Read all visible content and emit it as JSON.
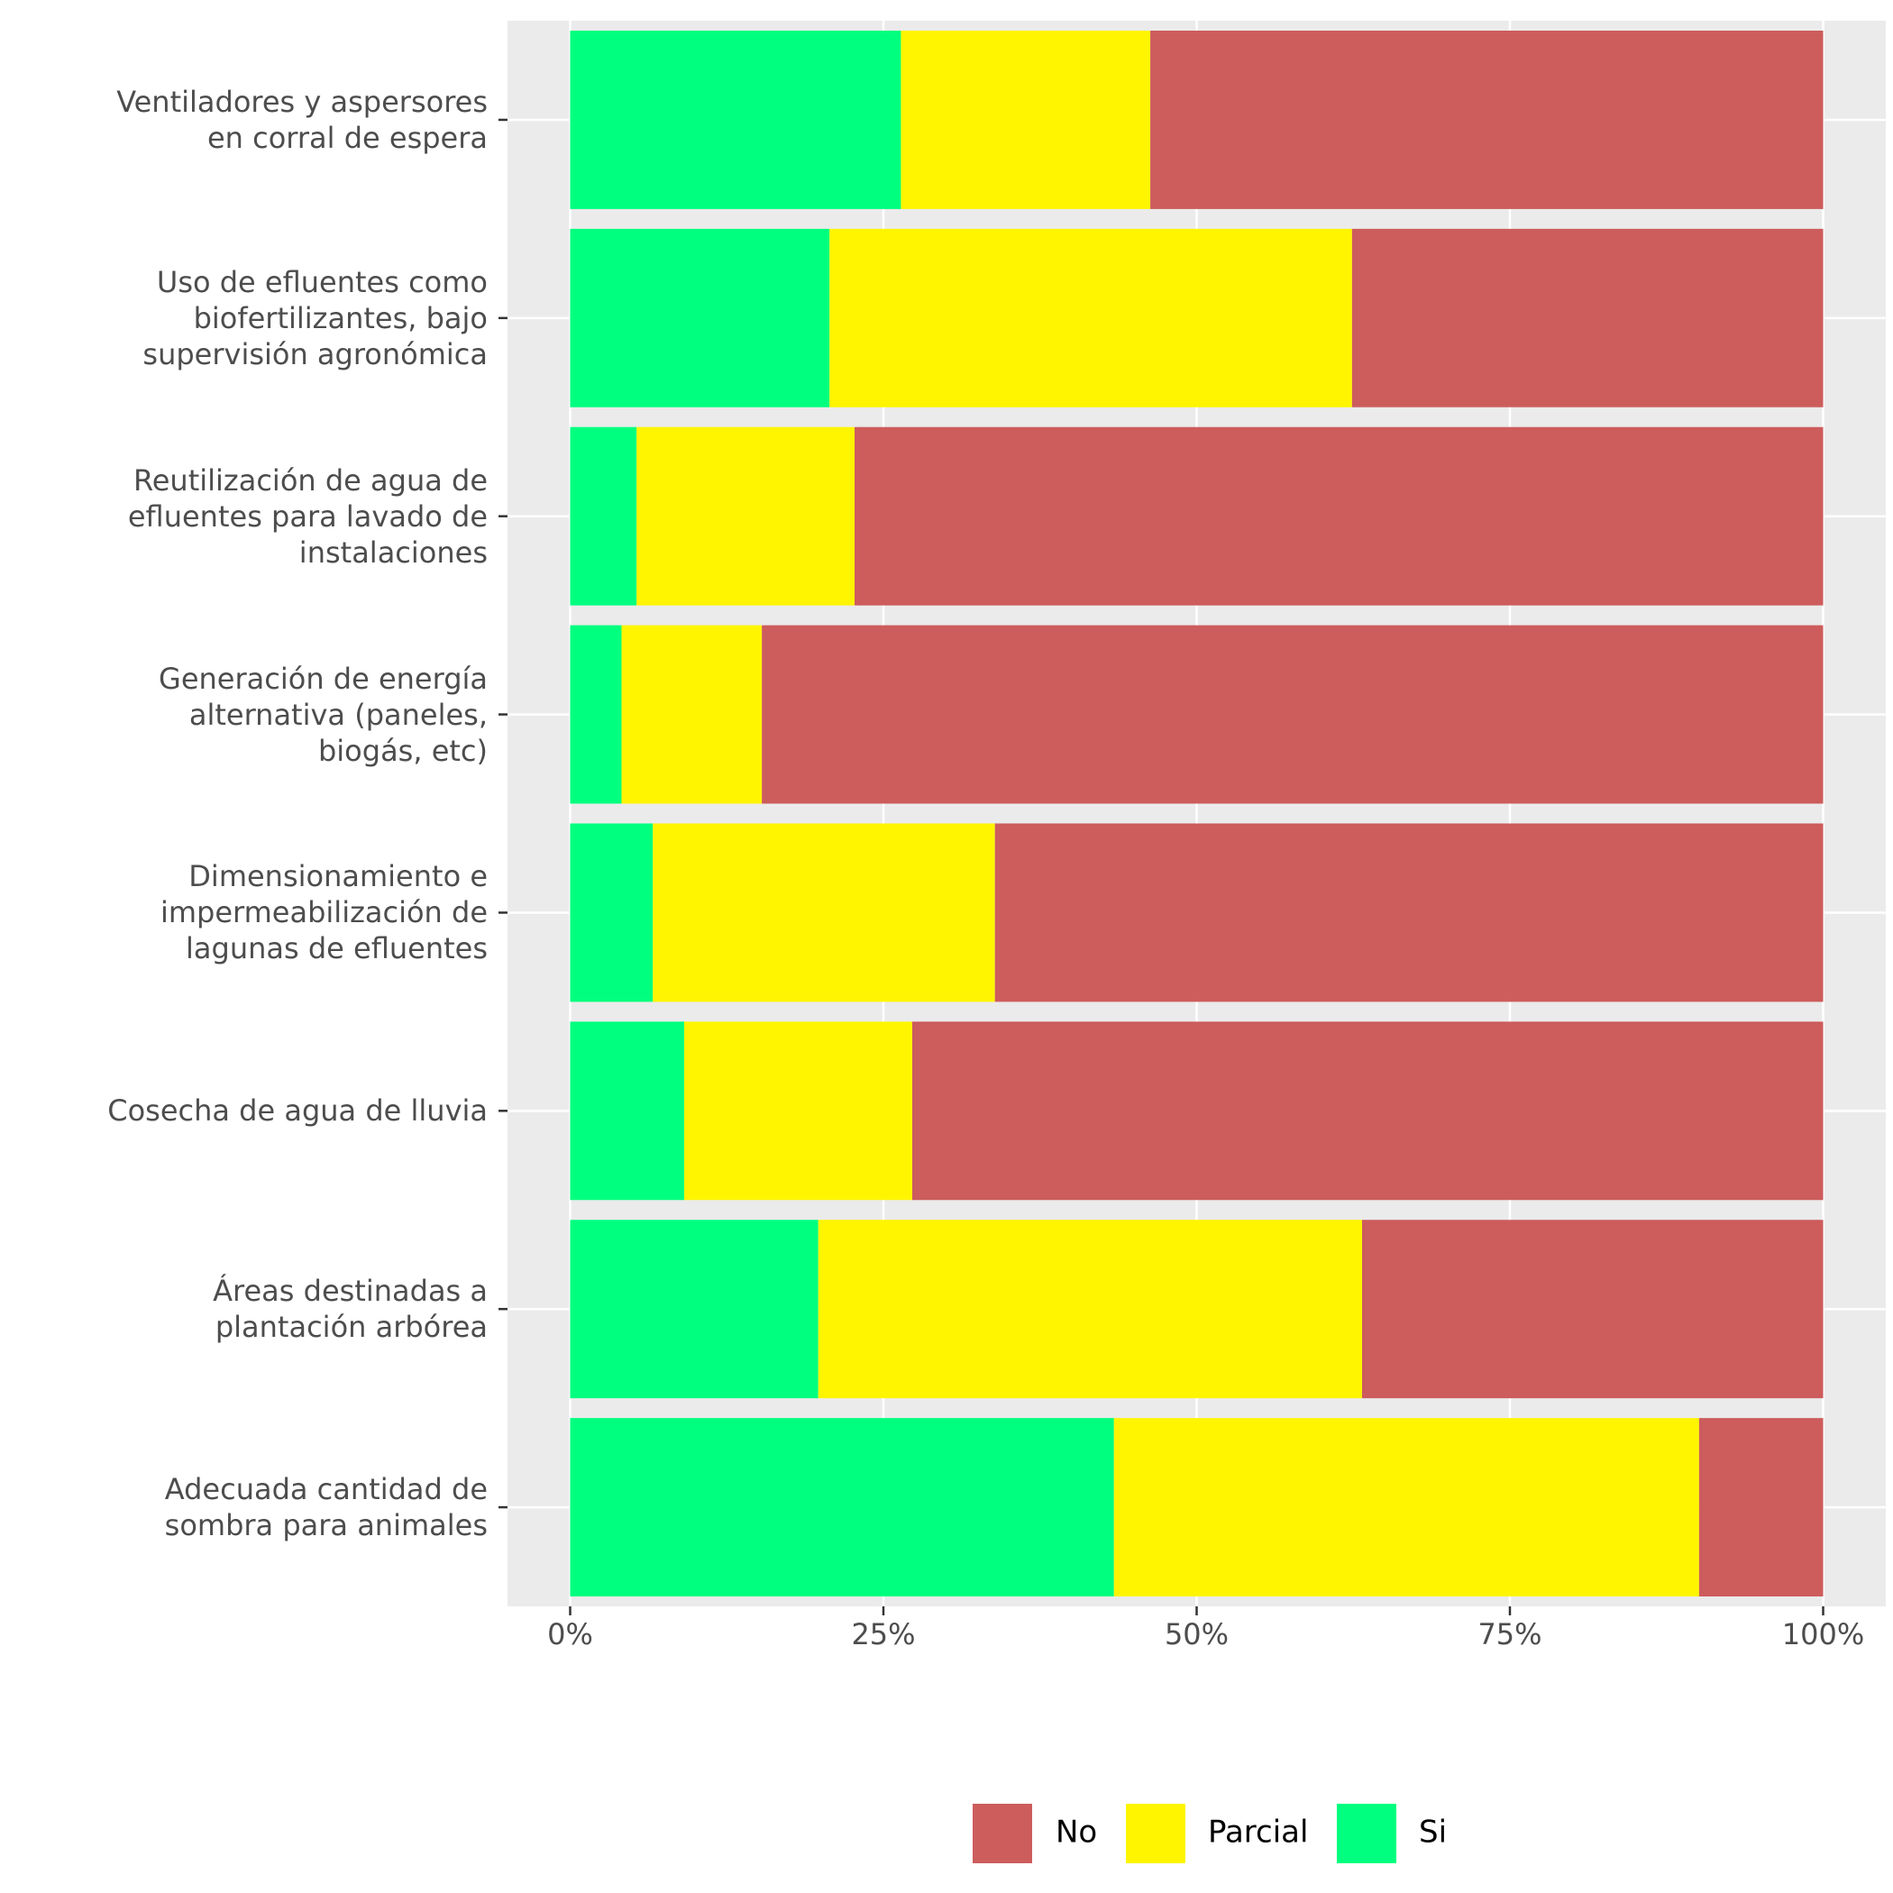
{
  "chart_data": {
    "type": "stacked-bar-horizontal",
    "categories": [
      "Ventiladores y aspersores\nen corral de espera",
      "Uso de efluentes como\nbiofertilizantes, bajo\nsupervisión agronómica",
      "Reutilización de agua de\nefluentes para lavado de\ninstalaciones",
      "Generación de energía\nalternativa (paneles,\nbiogás, etc)",
      "Dimensionamiento e\nimpermeabilización de\nlagunas de efluentes",
      "Cosecha de agua de lluvia",
      "Áreas destinadas a\nplantación arbórea",
      "Adecuada cantidad de\nsombra para animales"
    ],
    "series": [
      {
        "name": "No",
        "color": "#cd5c5c",
        "values": [
          53.7,
          37.6,
          77.3,
          84.7,
          66.1,
          72.7,
          36.8,
          9.9
        ]
      },
      {
        "name": "Parcial",
        "color": "#fff500",
        "values": [
          19.9,
          41.7,
          17.4,
          11.2,
          27.3,
          18.2,
          43.4,
          46.7
        ]
      },
      {
        "name": "Si",
        "color": "#00ff7f",
        "values": [
          26.4,
          20.7,
          5.3,
          4.1,
          6.6,
          9.1,
          19.8,
          43.4
        ]
      }
    ],
    "xlim": [
      -5,
      105
    ],
    "xticks": [
      {
        "value": 0,
        "label": "0%"
      },
      {
        "value": 25,
        "label": "25%"
      },
      {
        "value": 50,
        "label": "50%"
      },
      {
        "value": 75,
        "label": "75%"
      },
      {
        "value": 100,
        "label": "100%"
      }
    ],
    "grid": true,
    "legend": "bottom"
  }
}
